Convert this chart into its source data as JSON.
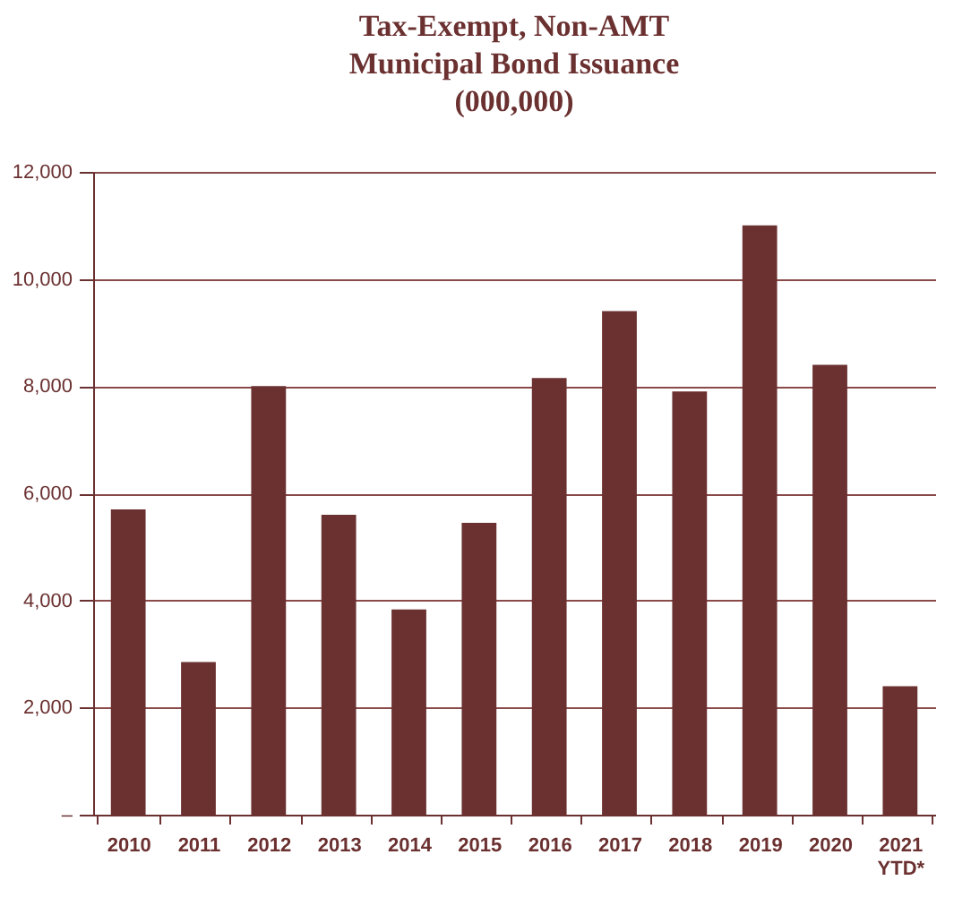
{
  "chart_data": {
    "type": "bar",
    "title": "Tax-Exempt, Non-AMT\nMunicipal Bond Issuance\n(000,000)",
    "categories": [
      "2010",
      "2011",
      "2012",
      "2013",
      "2014",
      "2015",
      "2016",
      "2017",
      "2018",
      "2019",
      "2020",
      "2021\nYTD*"
    ],
    "values": [
      5700,
      2850,
      8000,
      5600,
      3830,
      5450,
      8150,
      9400,
      7900,
      11000,
      8400,
      2400
    ],
    "color": "#6b3030",
    "ylim": [
      0,
      12000
    ],
    "yticks": [
      {
        "value": 0,
        "label": "–"
      },
      {
        "value": 2000,
        "label": "2,000"
      },
      {
        "value": 4000,
        "label": "4,000"
      },
      {
        "value": 6000,
        "label": "6,000"
      },
      {
        "value": 8000,
        "label": "8,000"
      },
      {
        "value": 10000,
        "label": "10,000"
      },
      {
        "value": 12000,
        "label": "12,000"
      }
    ],
    "grid": "y"
  }
}
